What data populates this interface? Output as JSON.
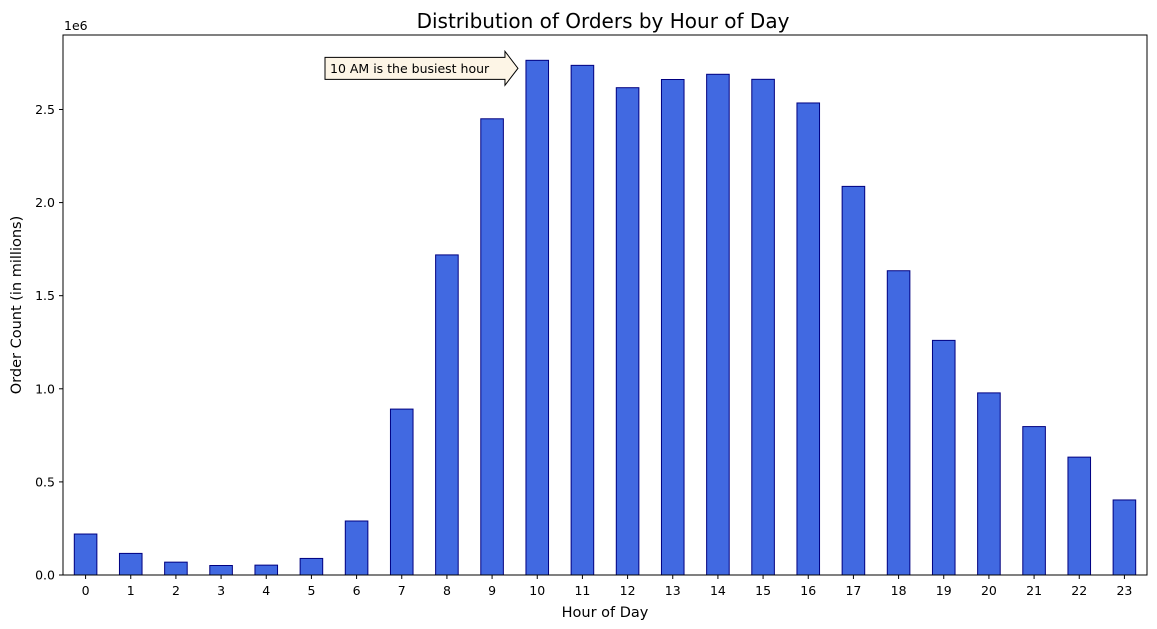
{
  "chart_data": {
    "type": "bar",
    "title": "Distribution of Orders by Hour of Day",
    "xlabel": "Hour of Day",
    "ylabel": "Order Count (in millions)",
    "y_offset_label": "1e6",
    "categories": [
      "0",
      "1",
      "2",
      "3",
      "4",
      "5",
      "6",
      "7",
      "8",
      "9",
      "10",
      "11",
      "12",
      "13",
      "14",
      "15",
      "16",
      "17",
      "18",
      "19",
      "20",
      "21",
      "22",
      "23"
    ],
    "values": [
      220000,
      116000,
      69000,
      51000,
      53000,
      89000,
      290000,
      891000,
      1719000,
      2450000,
      2764000,
      2737000,
      2617000,
      2661000,
      2689000,
      2662000,
      2535000,
      2087000,
      1634000,
      1260000,
      978000,
      797000,
      633000,
      403000
    ],
    "ylim": [
      0,
      2900000
    ],
    "yticks": [
      0,
      500000,
      1000000,
      1500000,
      2000000,
      2500000
    ],
    "ytick_labels": [
      "0.0",
      "0.5",
      "1.0",
      "1.5",
      "2.0",
      "2.5"
    ],
    "grid": false,
    "colors": {
      "bar_fill": "#4169E1",
      "bar_edge": "#000080",
      "annotation_fill": "#FDF5E6"
    },
    "annotation": {
      "text": "10 AM is the busiest hour",
      "target_category": "10"
    }
  }
}
